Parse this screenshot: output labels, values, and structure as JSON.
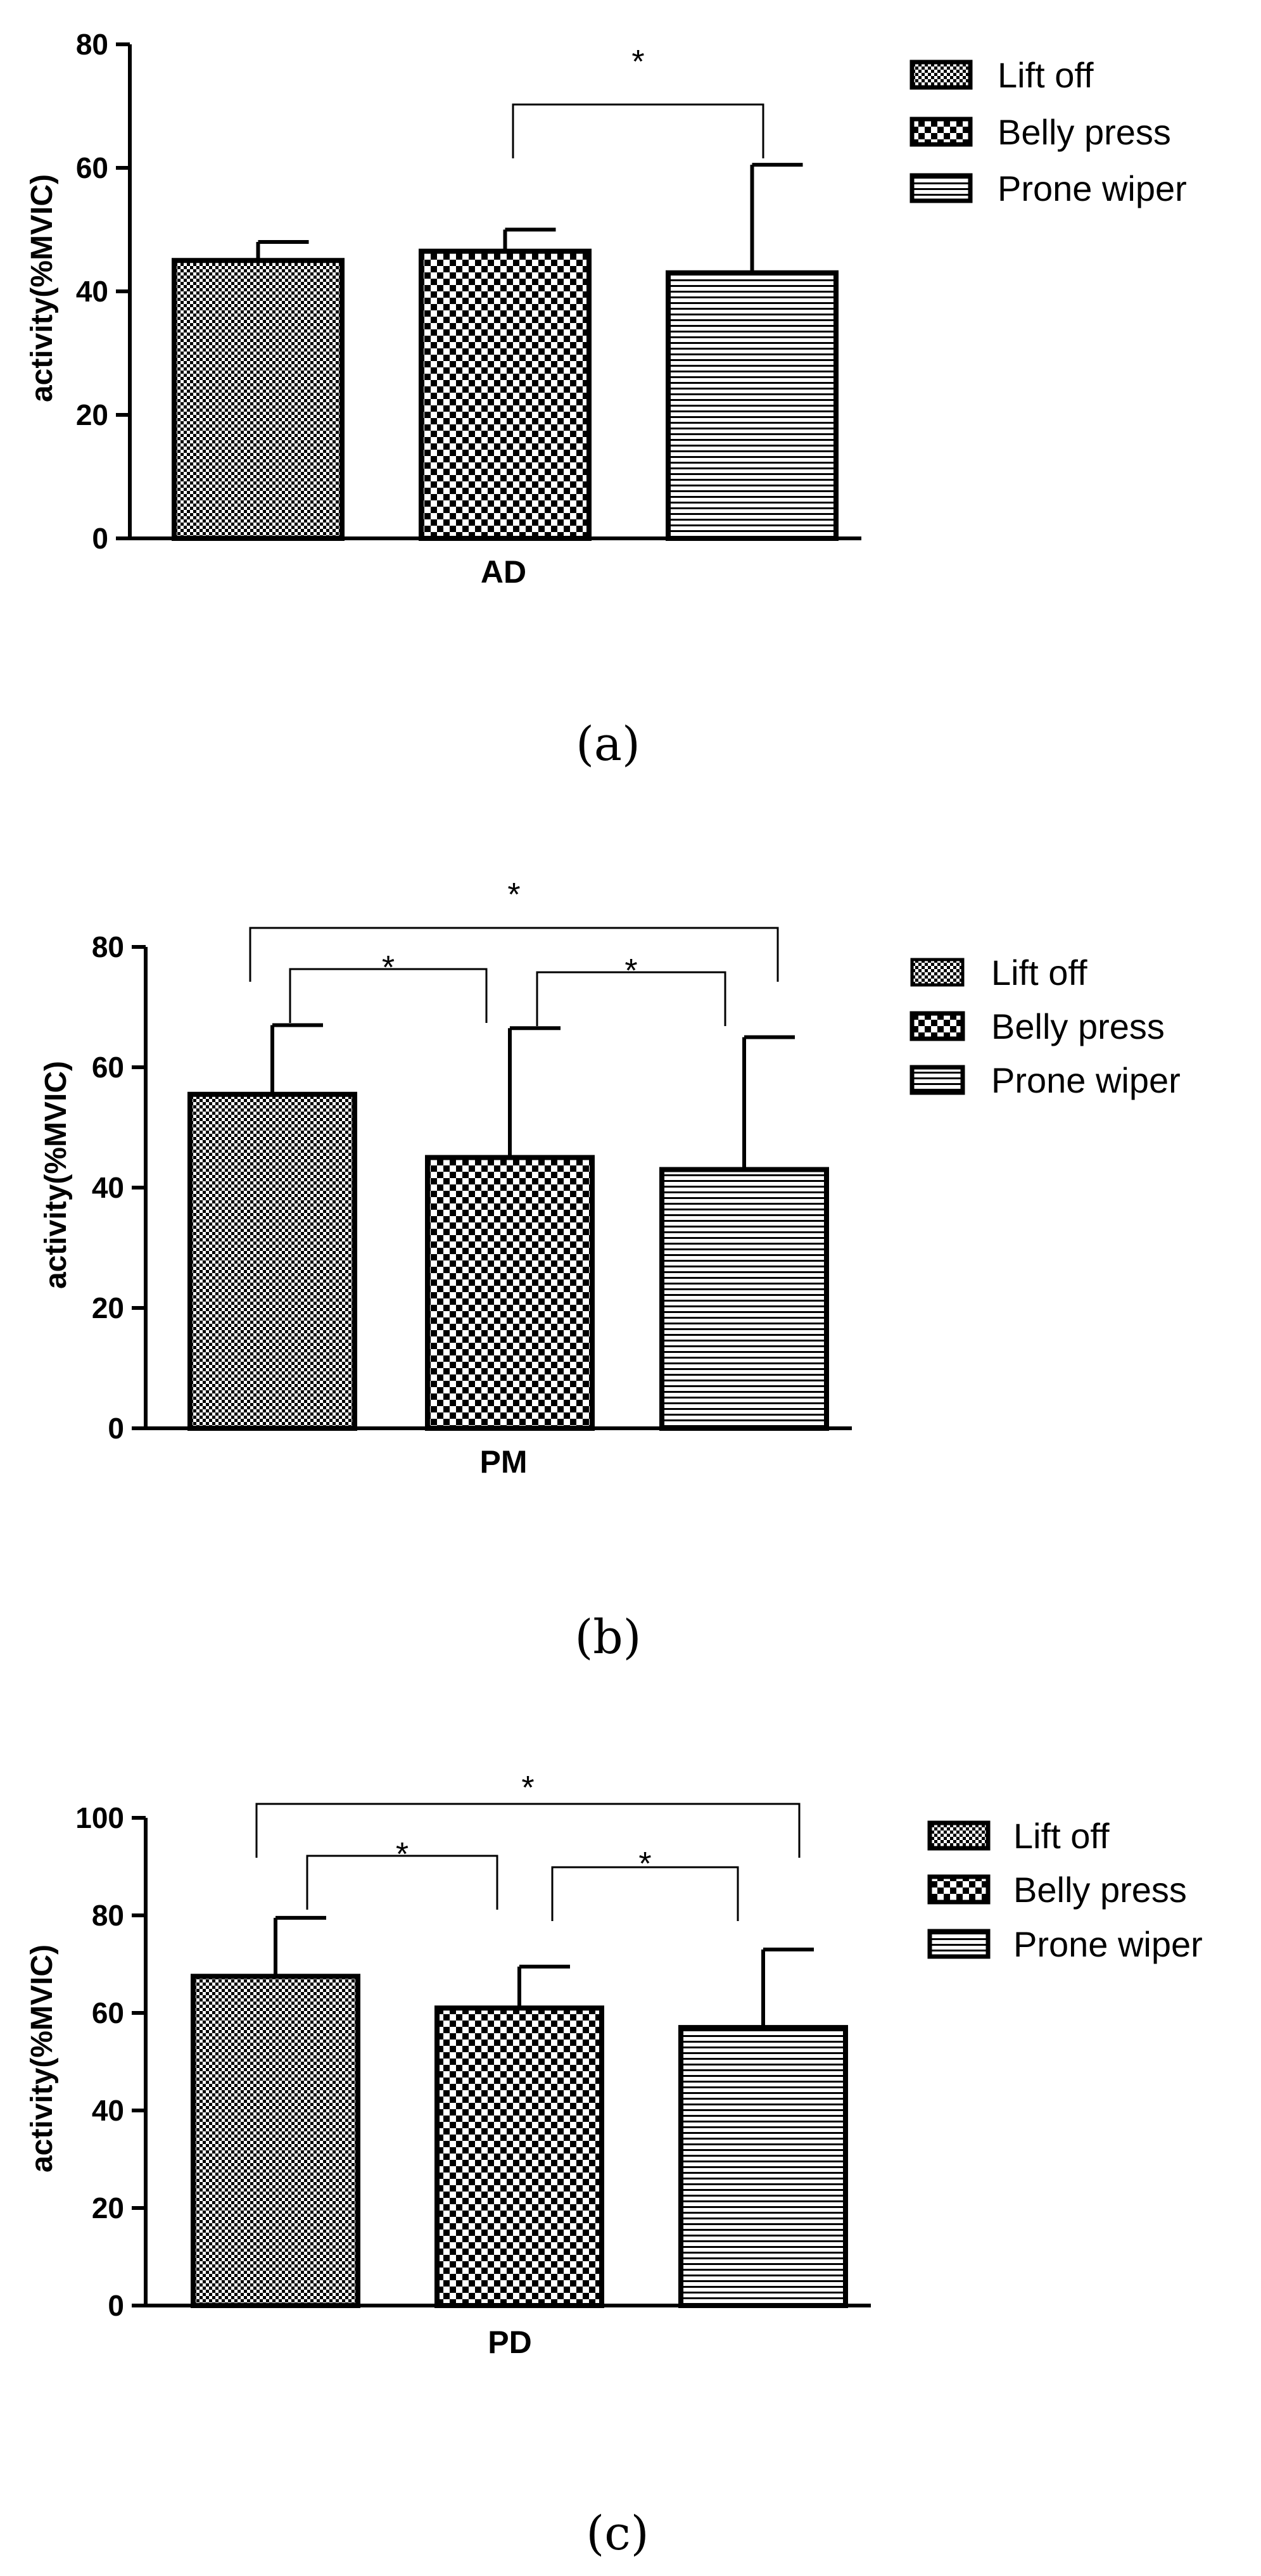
{
  "panels": [
    {
      "caption": "(a)",
      "ylabel": "activity(%MVIC)",
      "category": "AD",
      "legend": [
        "Lift off",
        "Belly press",
        "Prone wiper"
      ],
      "significance": "*",
      "colors": {
        "edge": "#000000",
        "fill": "#ffffff"
      }
    },
    {
      "caption": "(b)",
      "ylabel": "activity(%MVIC)",
      "category": "PM",
      "legend": [
        "Lift off",
        "Belly press",
        "Prone wiper"
      ],
      "significance": "*",
      "colors": {
        "edge": "#000000",
        "fill": "#ffffff"
      }
    },
    {
      "caption": "(c)",
      "ylabel": "activity(%MVIC)",
      "category": "PD",
      "legend": [
        "Lift off",
        "Belly press",
        "Prone wiper"
      ],
      "significance": "*",
      "colors": {
        "edge": "#000000",
        "fill": "#ffffff"
      }
    }
  ],
  "chart_data": [
    {
      "type": "bar",
      "categories": [
        "AD"
      ],
      "ylabel": "activity(%MVIC)",
      "ylim": [
        0,
        80
      ],
      "yticks": [
        0,
        20,
        40,
        60,
        80
      ],
      "legend_position": "right",
      "series": [
        {
          "name": "Lift off",
          "values": [
            45
          ],
          "error": [
            3
          ],
          "pattern": "checker-fine"
        },
        {
          "name": "Belly press",
          "values": [
            46.5
          ],
          "error": [
            3.5
          ],
          "pattern": "checker-coarse"
        },
        {
          "name": "Prone wiper",
          "values": [
            43
          ],
          "error": [
            17.5
          ],
          "pattern": "horizontal-lines"
        }
      ],
      "significance": [
        {
          "pair": [
            "Belly press",
            "Prone wiper"
          ],
          "label": "*"
        }
      ]
    },
    {
      "type": "bar",
      "categories": [
        "PM"
      ],
      "ylabel": "activity(%MVIC)",
      "ylim": [
        0,
        80
      ],
      "yticks": [
        0,
        20,
        40,
        60,
        80
      ],
      "legend_position": "right",
      "series": [
        {
          "name": "Lift off",
          "values": [
            55.5
          ],
          "error": [
            11.5
          ],
          "pattern": "checker-fine"
        },
        {
          "name": "Belly press",
          "values": [
            45
          ],
          "error": [
            21.5
          ],
          "pattern": "checker-coarse"
        },
        {
          "name": "Prone wiper",
          "values": [
            43
          ],
          "error": [
            22
          ],
          "pattern": "horizontal-lines"
        }
      ],
      "significance": [
        {
          "pair": [
            "Lift off",
            "Prone wiper"
          ],
          "label": "*"
        },
        {
          "pair": [
            "Lift off",
            "Belly press"
          ],
          "label": "*"
        },
        {
          "pair": [
            "Belly press",
            "Prone wiper"
          ],
          "label": "*"
        }
      ]
    },
    {
      "type": "bar",
      "categories": [
        "PD"
      ],
      "ylabel": "activity(%MVIC)",
      "ylim": [
        0,
        100
      ],
      "yticks": [
        0,
        20,
        40,
        60,
        80,
        100
      ],
      "legend_position": "right",
      "series": [
        {
          "name": "Lift off",
          "values": [
            67.5
          ],
          "error": [
            12
          ],
          "pattern": "checker-fine"
        },
        {
          "name": "Belly press",
          "values": [
            61
          ],
          "error": [
            8.5
          ],
          "pattern": "checker-coarse"
        },
        {
          "name": "Prone wiper",
          "values": [
            57
          ],
          "error": [
            16
          ],
          "pattern": "horizontal-lines"
        }
      ],
      "significance": [
        {
          "pair": [
            "Lift off",
            "Prone wiper"
          ],
          "label": "*"
        },
        {
          "pair": [
            "Lift off",
            "Belly press"
          ],
          "label": "*"
        },
        {
          "pair": [
            "Belly press",
            "Prone wiper"
          ],
          "label": "*"
        }
      ]
    }
  ]
}
